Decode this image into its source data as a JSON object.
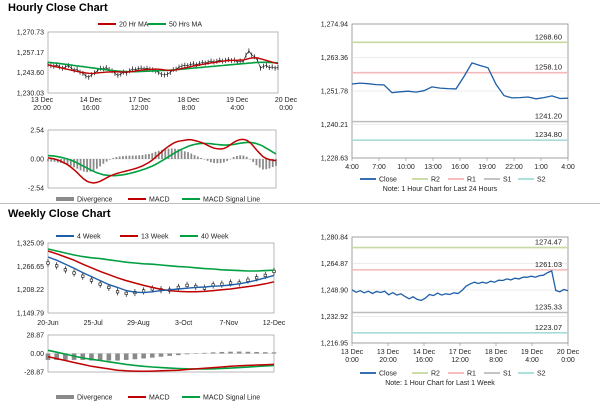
{
  "sections": {
    "hourly_title": "Hourly Close Chart",
    "weekly_title": "Weekly Close Chart"
  },
  "colors": {
    "ma20": "#c00000",
    "ma50": "#00a040",
    "close": "#1f5fa8",
    "r2": "#c6d9a0",
    "r1": "#f4b8b8",
    "s1": "#bdbdbd",
    "s2": "#a8dcd8",
    "divergence": "#8a8a8a",
    "grid": "#d8d8d8"
  },
  "chart_data": [
    {
      "id": "hourly-price",
      "type": "line",
      "title": "Hourly Close Chart",
      "legend": [
        "20 Hr MA",
        "50 Hrs MA"
      ],
      "ylim": [
        1230.03,
        1270.73
      ],
      "yticks": [
        "1,270.73",
        "1,257.17",
        "1,243.60",
        "1,230.03"
      ],
      "xticks": [
        [
          "13 Dec",
          "20:00"
        ],
        [
          "14 Dec",
          "16:00"
        ],
        [
          "17 Dec",
          "12:00"
        ],
        [
          "18 Dec",
          "8:00"
        ],
        [
          "19 Dec",
          "4:00"
        ],
        [
          "20 Dec",
          "0:00"
        ]
      ],
      "series": [
        {
          "name": "Close",
          "values": [
            1249,
            1248,
            1247.5,
            1248.5,
            1247,
            1246,
            1247,
            1248,
            1246,
            1244.5,
            1245,
            1243,
            1242,
            1240,
            1239,
            1241,
            1242.5,
            1244,
            1246,
            1245.5,
            1246.5,
            1245,
            1244,
            1242,
            1240.5,
            1241.5,
            1243,
            1242.2,
            1244,
            1245.5,
            1244.8,
            1245.6,
            1246.2,
            1245.4,
            1246,
            1245.2,
            1244.8,
            1243.9,
            1242.8,
            1241.2,
            1240.8,
            1241.4,
            1242.8,
            1244.9,
            1245.2,
            1246.8,
            1247.6,
            1248.4,
            1247.9,
            1248.9,
            1249.4,
            1248.6,
            1249.6,
            1250.4,
            1249.9,
            1250.6,
            1251.5,
            1250.8,
            1251.3,
            1252.2,
            1251.4,
            1252,
            1252.6,
            1251.8,
            1252.3,
            1250.5,
            1251.6,
            1250.8,
            1256,
            1259.3,
            1256.1,
            1254.8,
            1252,
            1246,
            1247.5,
            1248,
            1246.5,
            1247,
            1246,
            1246.5
          ]
        },
        {
          "name": "20 Hr MA",
          "values": [
            1248.5,
            1248,
            1247.5,
            1247,
            1246.5,
            1246,
            1245.5,
            1245,
            1244.5,
            1244,
            1243.5,
            1243,
            1242.7,
            1242.4,
            1242.1,
            1242,
            1242.1,
            1242.4,
            1242.6,
            1242.8,
            1243,
            1243.1,
            1243.2,
            1243.3,
            1243.2,
            1243.1,
            1243,
            1243,
            1243.2,
            1243.5,
            1243.8,
            1244.2,
            1244.5,
            1244.8,
            1245,
            1245.1,
            1245.2,
            1245.3,
            1245.2,
            1245,
            1244.7,
            1244.5,
            1244.4,
            1244.5,
            1244.8,
            1245.2,
            1245.7,
            1246.2,
            1246.7,
            1247.2,
            1247.7,
            1248.1,
            1248.5,
            1248.9,
            1249.3,
            1249.7,
            1250.1,
            1250.4,
            1250.8,
            1251.1,
            1251.4,
            1251.7,
            1251.9,
            1252,
            1252.1,
            1252.1,
            1252.2,
            1252.3,
            1252.8,
            1253.4,
            1253.8,
            1254,
            1253.8,
            1253.2,
            1252.6,
            1252,
            1251.3,
            1250.6,
            1250,
            1249.5
          ]
        },
        {
          "name": "50 Hrs MA",
          "values": [
            1250.5,
            1250.3,
            1250.1,
            1249.9,
            1249.6,
            1249.3,
            1249,
            1248.7,
            1248.4,
            1248.1,
            1247.8,
            1247.5,
            1247.2,
            1246.9,
            1246.6,
            1246.3,
            1246,
            1245.7,
            1245.4,
            1245.1,
            1244.8,
            1244.5,
            1244.2,
            1244,
            1243.8,
            1243.6,
            1243.5,
            1243.4,
            1243.3,
            1243.3,
            1243.3,
            1243.4,
            1243.5,
            1243.6,
            1243.7,
            1243.8,
            1243.9,
            1244,
            1244.1,
            1244.2,
            1244.3,
            1244.4,
            1244.5,
            1244.7,
            1244.9,
            1245.1,
            1245.3,
            1245.5,
            1245.7,
            1245.9,
            1246.1,
            1246.3,
            1246.5,
            1246.7,
            1246.9,
            1247.1,
            1247.3,
            1247.5,
            1247.7,
            1247.9,
            1248.1,
            1248.3,
            1248.5,
            1248.7,
            1248.9,
            1249.1,
            1249.3,
            1249.5,
            1249.7,
            1249.9,
            1250.1,
            1250.3,
            1250.4,
            1250.5,
            1250.5,
            1250.5,
            1250.4,
            1250.3,
            1250.2,
            1250.1
          ]
        }
      ]
    },
    {
      "id": "hourly-macd",
      "type": "line",
      "legend": [
        "Divergence",
        "MACD",
        "MACD Signal Line"
      ],
      "ylim": [
        -2.54,
        2.54
      ],
      "yticks": [
        "2.54",
        "0.00",
        "-2.54"
      ],
      "series": [
        {
          "name": "MACD",
          "values": [
            0.1,
            0.05,
            0,
            -0.1,
            -0.2,
            -0.35,
            -0.5,
            -0.7,
            -0.95,
            -1.2,
            -1.5,
            -1.75,
            -1.95,
            -2.05,
            -2.1,
            -2.05,
            -1.95,
            -1.8,
            -1.65,
            -1.5,
            -1.38,
            -1.28,
            -1.2,
            -1.12,
            -1.05,
            -0.98,
            -0.9,
            -0.82,
            -0.72,
            -0.6,
            -0.45,
            -0.3,
            -0.1,
            0.15,
            0.4,
            0.65,
            0.9,
            1.1,
            1.3,
            1.45,
            1.55,
            1.6,
            1.65,
            1.7,
            1.68,
            1.62,
            1.55,
            1.45,
            1.35,
            1.2,
            1.05,
            0.95,
            0.9,
            0.88,
            0.92,
            1.05,
            1.25,
            1.45,
            1.6,
            1.7,
            1.72,
            1.65,
            1.45,
            1.15,
            0.8,
            0.5,
            0.2,
            0.05,
            -0.05,
            -0.1,
            -0.15
          ]
        },
        {
          "name": "MACD Signal Line",
          "values": [
            0.3,
            0.28,
            0.25,
            0.2,
            0.15,
            0.08,
            0,
            -0.1,
            -0.22,
            -0.35,
            -0.5,
            -0.65,
            -0.8,
            -0.95,
            -1.08,
            -1.2,
            -1.3,
            -1.38,
            -1.42,
            -1.45,
            -1.46,
            -1.45,
            -1.42,
            -1.38,
            -1.33,
            -1.27,
            -1.2,
            -1.12,
            -1.04,
            -0.95,
            -0.85,
            -0.74,
            -0.62,
            -0.48,
            -0.32,
            -0.15,
            0.02,
            0.2,
            0.38,
            0.55,
            0.7,
            0.85,
            0.98,
            1.1,
            1.2,
            1.28,
            1.33,
            1.36,
            1.37,
            1.36,
            1.34,
            1.3,
            1.27,
            1.24,
            1.22,
            1.22,
            1.24,
            1.28,
            1.33,
            1.38,
            1.42,
            1.45,
            1.45,
            1.42,
            1.35,
            1.25,
            1.12,
            0.95,
            0.78,
            0.6,
            0.45
          ]
        },
        {
          "name": "Divergence",
          "values": [
            -0.2,
            -0.23,
            -0.25,
            -0.3,
            -0.35,
            -0.43,
            -0.5,
            -0.6,
            -0.73,
            -0.85,
            -1,
            -1.1,
            -1.15,
            -1.1,
            -1.02,
            -0.85,
            -0.65,
            -0.42,
            -0.23,
            -0.05,
            0.08,
            0.17,
            0.22,
            0.26,
            0.28,
            0.29,
            0.3,
            0.3,
            0.32,
            0.35,
            0.4,
            0.44,
            0.52,
            0.63,
            0.72,
            0.8,
            0.88,
            0.9,
            0.92,
            0.9,
            0.85,
            0.75,
            0.67,
            0.6,
            0.48,
            0.34,
            0.22,
            0.09,
            -0.02,
            -0.16,
            -0.29,
            -0.35,
            -0.37,
            -0.36,
            -0.3,
            -0.17,
            0.01,
            0.17,
            0.27,
            0.32,
            0.3,
            0.2,
            0,
            -0.27,
            -0.55,
            -0.75,
            -0.92,
            -0.9,
            -0.83,
            -0.7,
            -0.6
          ]
        }
      ]
    },
    {
      "id": "hourly-close-levels",
      "type": "line",
      "ylim": [
        1228.63,
        1274.94
      ],
      "yticks": [
        "1,274.94",
        "1,263.36",
        "1,251.78",
        "1,240.21",
        "1,228.63"
      ],
      "xticks": [
        "4:00",
        "7:00",
        "10:00",
        "13:00",
        "16:00",
        "19:00",
        "22:00",
        "1:00",
        "4:00"
      ],
      "levels": [
        {
          "name": "R2",
          "value": 1268.6,
          "label": "1268.60"
        },
        {
          "name": "R1",
          "value": 1258.1,
          "label": "1258.10"
        },
        {
          "name": "S1",
          "value": 1241.2,
          "label": "1241.20"
        },
        {
          "name": "S2",
          "value": 1234.8,
          "label": "1234.80"
        }
      ],
      "series": [
        {
          "name": "Close",
          "values": [
            1254.2,
            1254.5,
            1254.3,
            1254,
            1253.9,
            1251.2,
            1251.5,
            1251.7,
            1251.4,
            1251.9,
            1253.2,
            1252.8,
            1252.6,
            1252.5,
            1256.8,
            1261.5,
            1260.6,
            1259.8,
            1254.1,
            1250.2,
            1249.4,
            1249.5,
            1249.7,
            1249.1,
            1249.5,
            1250.1,
            1249.2,
            1249.3
          ]
        }
      ],
      "legend": [
        "Close",
        "R2",
        "R1",
        "S1",
        "S2"
      ],
      "note": "Note: 1 Hour Chart for Last 24 Hours"
    },
    {
      "id": "weekly-price",
      "type": "line",
      "title": "Weekly Close Chart",
      "legend": [
        "4 Week",
        "13 Week",
        "40 Week"
      ],
      "ylim": [
        1149.79,
        1325.09
      ],
      "yticks": [
        "1,325.09",
        "1,266.65",
        "1,208.22",
        "1,149.79"
      ],
      "xticks": [
        "20-Jun",
        "25-Jul",
        "29-Aug",
        "3-Oct",
        "7-Nov",
        "12-Dec"
      ],
      "series": [
        {
          "name": "Close",
          "values": [
            1275,
            1268,
            1258,
            1250,
            1242,
            1232,
            1222,
            1214,
            1203,
            1199,
            1201,
            1205,
            1210,
            1208,
            1207,
            1214,
            1219,
            1216,
            1212,
            1220,
            1222,
            1225,
            1225,
            1232,
            1238,
            1244,
            1254
          ]
        },
        {
          "name": "4 Week",
          "values": [
            1290,
            1282,
            1272,
            1262,
            1251,
            1241,
            1231,
            1221,
            1214,
            1206,
            1202,
            1201,
            1203,
            1206,
            1208,
            1210,
            1212,
            1214,
            1215,
            1217,
            1218,
            1220,
            1223,
            1227,
            1232,
            1238,
            1244
          ]
        },
        {
          "name": "13 Week",
          "values": [
            1305,
            1298,
            1290,
            1282,
            1272,
            1263,
            1254,
            1246,
            1238,
            1231,
            1225,
            1219,
            1214,
            1209,
            1206,
            1204,
            1203,
            1203,
            1204,
            1206,
            1208,
            1210,
            1213,
            1216,
            1219,
            1223,
            1228
          ]
        },
        {
          "name": "40 Week",
          "values": [
            1310,
            1305,
            1300,
            1295,
            1291,
            1288,
            1286,
            1283,
            1280,
            1277,
            1275,
            1273,
            1272,
            1270,
            1268,
            1266,
            1265,
            1263,
            1261,
            1260,
            1258,
            1257,
            1256,
            1255,
            1255,
            1256,
            1257
          ]
        }
      ]
    },
    {
      "id": "weekly-macd",
      "type": "line",
      "legend": [
        "Divergence",
        "MACD",
        "MACD Signal Line"
      ],
      "ylim": [
        -28.87,
        28.87
      ],
      "yticks": [
        "28.87",
        "0.00",
        "-28.87"
      ],
      "series": [
        {
          "name": "MACD",
          "values": [
            -5,
            -8,
            -11,
            -14,
            -17,
            -20,
            -22,
            -24,
            -26,
            -27,
            -27.5,
            -27.8,
            -27.5,
            -27,
            -26.5,
            -26,
            -25,
            -24,
            -23,
            -22,
            -21,
            -20,
            -19,
            -18.5,
            -18,
            -17.5,
            -17
          ]
        },
        {
          "name": "MACD Signal Line",
          "values": [
            5,
            2,
            -1,
            -4,
            -7,
            -9,
            -11,
            -13,
            -15,
            -17,
            -18.5,
            -20,
            -21,
            -22,
            -22.8,
            -23.4,
            -23.8,
            -24,
            -24,
            -23.8,
            -23.4,
            -22.8,
            -22,
            -21.2,
            -20.3,
            -19.5,
            -18.8
          ]
        },
        {
          "name": "Divergence",
          "values": [
            -10,
            -10,
            -10,
            -10,
            -10,
            -11,
            -11,
            -11,
            -11,
            -10,
            -9,
            -7.8,
            -6.5,
            -5,
            -3.7,
            -2.6,
            -1.2,
            0,
            1,
            1.8,
            2.4,
            2.8,
            3,
            2.7,
            2.3,
            2,
            1.8
          ]
        }
      ]
    },
    {
      "id": "weekly-close-levels",
      "type": "line",
      "ylim": [
        1216.95,
        1280.84
      ],
      "yticks": [
        "1,280.84",
        "1,264.87",
        "1,248.90",
        "1,232.92",
        "1,216.95"
      ],
      "xticks": [
        [
          "13 Dec",
          "0:00"
        ],
        [
          "13 Dec",
          "20:00"
        ],
        [
          "14 Dec",
          "16:00"
        ],
        [
          "17 Dec",
          "12:00"
        ],
        [
          "18 Dec",
          "8:00"
        ],
        [
          "19 Dec",
          "4:00"
        ],
        [
          "20 Dec",
          "0:00"
        ]
      ],
      "levels": [
        {
          "name": "R2",
          "value": 1274.47,
          "label": "1274.47"
        },
        {
          "name": "R1",
          "value": 1261.03,
          "label": "1261.03"
        },
        {
          "name": "S1",
          "value": 1235.33,
          "label": "1235.33"
        },
        {
          "name": "S2",
          "value": 1223.07,
          "label": "1223.07"
        }
      ],
      "series": [
        {
          "name": "Close",
          "values": [
            1249,
            1247.5,
            1248.5,
            1247.2,
            1248.2,
            1246.8,
            1248,
            1247.4,
            1248.2,
            1246,
            1247.3,
            1245.8,
            1246.6,
            1245,
            1243.6,
            1244.8,
            1243.2,
            1242.6,
            1244,
            1246.2,
            1245.5,
            1247,
            1245.8,
            1246.6,
            1246.2,
            1247.2,
            1246.8,
            1248.6,
            1251.2,
            1252.6,
            1253.6,
            1252.8,
            1253.6,
            1253,
            1254.2,
            1253.6,
            1254.8,
            1254.6,
            1255.6,
            1255,
            1256,
            1255.6,
            1256.6,
            1256.6,
            1257.2,
            1256.6,
            1257.6,
            1257.8,
            1259.4,
            1260.4,
            1248.6,
            1247.8,
            1249.2,
            1248.4
          ]
        }
      ],
      "legend": [
        "Close",
        "R2",
        "R1",
        "S1",
        "S2"
      ],
      "note": "Note: 1 Hour Chart for Last 1 Week"
    }
  ]
}
